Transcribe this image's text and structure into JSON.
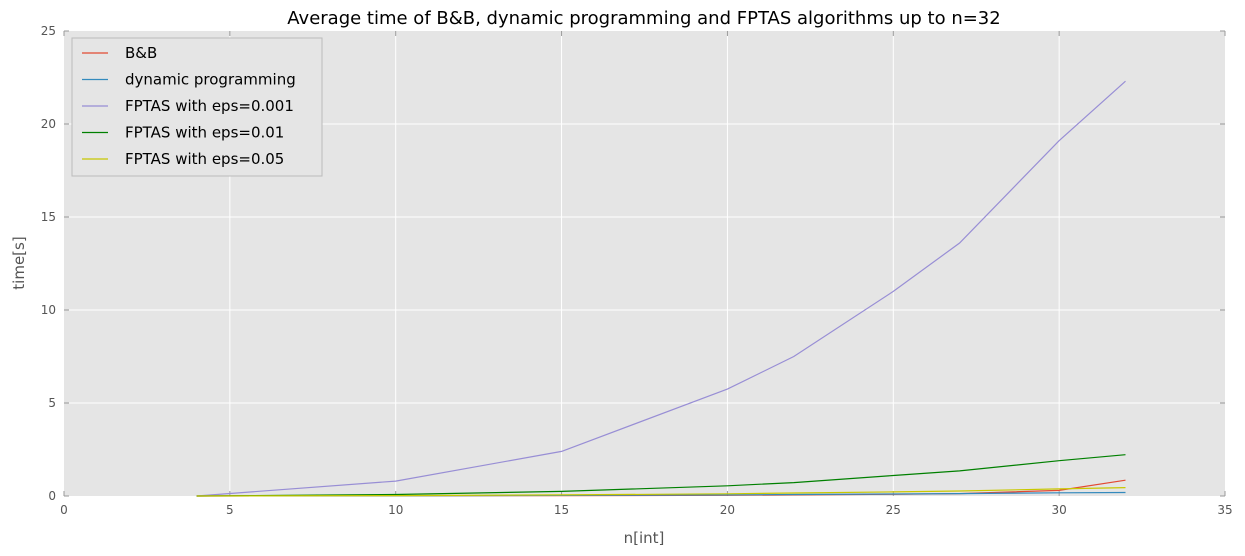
{
  "chart_data": {
    "type": "line",
    "title": "Average time of B&B, dynamic programming and FPTAS algorithms up to n=32",
    "xlabel": "n[int]",
    "ylabel": "time[s]",
    "xlim": [
      0,
      35
    ],
    "ylim": [
      0,
      25
    ],
    "xticks": [
      0,
      5,
      10,
      15,
      20,
      25,
      30,
      35
    ],
    "yticks": [
      0,
      5,
      10,
      15,
      20,
      25
    ],
    "grid": true,
    "legend_position": "top-left",
    "background_color": "#e5e5e5",
    "x": [
      4,
      10,
      15,
      20,
      22,
      25,
      27,
      30,
      32
    ],
    "series": [
      {
        "name": "B&B",
        "color": "#e24a33",
        "values": [
          0.0,
          0.01,
          0.02,
          0.04,
          0.06,
          0.09,
          0.13,
          0.3,
          0.85
        ]
      },
      {
        "name": "dynamic programming",
        "color": "#348abd",
        "values": [
          0.0,
          0.01,
          0.03,
          0.06,
          0.08,
          0.11,
          0.13,
          0.17,
          0.19
        ]
      },
      {
        "name": "FPTAS with eps=0.001",
        "color": "#988ed5",
        "values": [
          0.0,
          0.8,
          2.4,
          5.75,
          7.5,
          11.0,
          13.6,
          19.1,
          22.3
        ]
      },
      {
        "name": "FPTAS with eps=0.01",
        "color": "#008000",
        "values": [
          0.0,
          0.08,
          0.25,
          0.55,
          0.72,
          1.1,
          1.35,
          1.9,
          2.22
        ]
      },
      {
        "name": "FPTAS with eps=0.05",
        "color": "#c8c800",
        "values": [
          0.0,
          0.02,
          0.06,
          0.12,
          0.16,
          0.22,
          0.27,
          0.38,
          0.45
        ]
      }
    ]
  }
}
